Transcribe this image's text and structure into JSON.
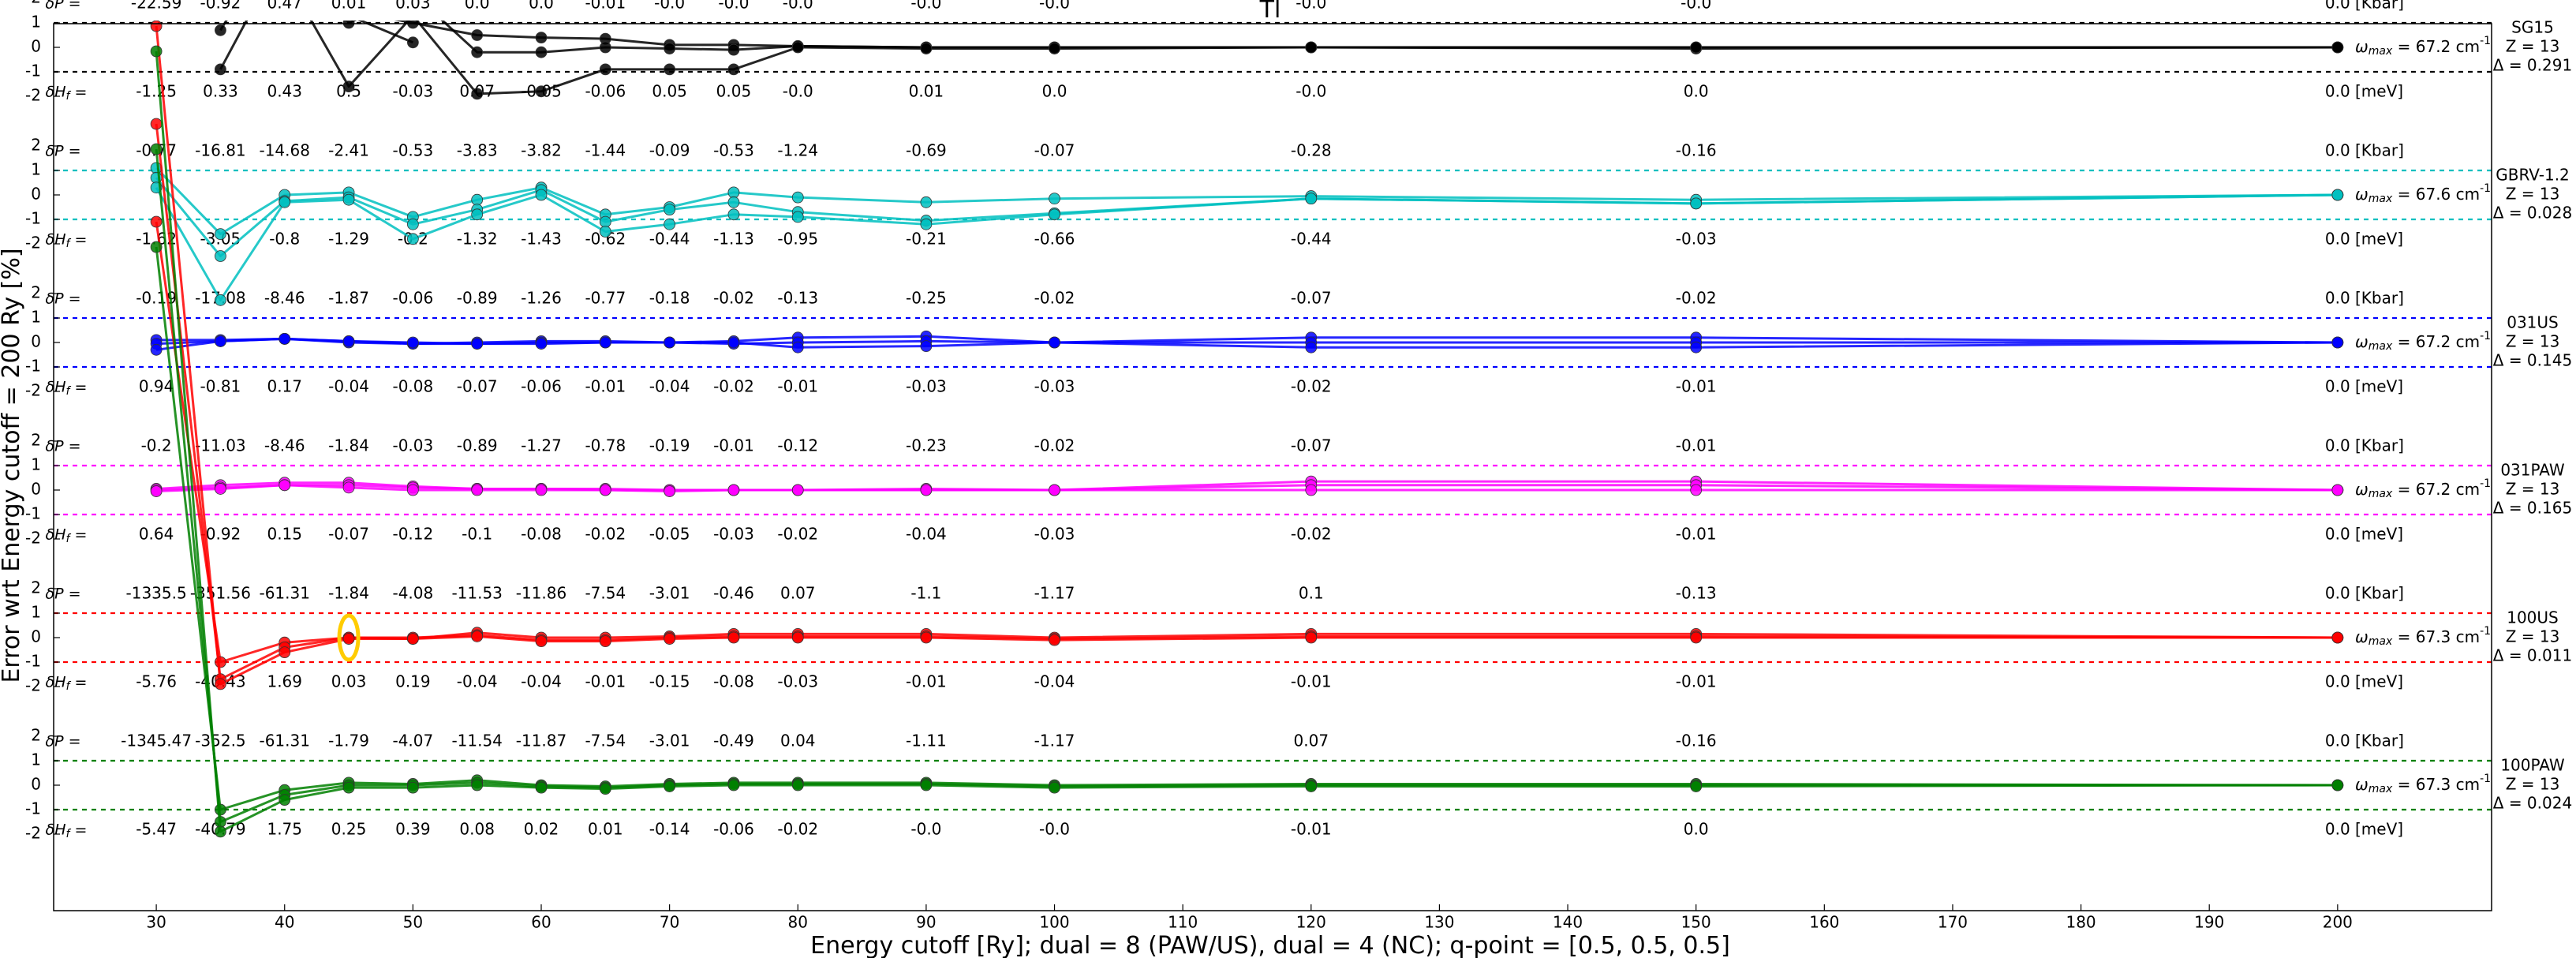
{
  "chart_data": {
    "type": "line",
    "title": "Tl",
    "xlabel": "Energy cutoff [Ry]; dual = 8 (PAW/US), dual = 4 (NC); q-point = [0.5, 0.5, 0.5]",
    "ylabel": "Error wrt Energy cutoff = 200 Ry [%]",
    "x": [
      30,
      35,
      40,
      45,
      50,
      55,
      60,
      65,
      70,
      75,
      80,
      90,
      100,
      120,
      150,
      200
    ],
    "xlim": [
      22,
      212
    ],
    "xticks": [
      30,
      40,
      50,
      60,
      70,
      80,
      90,
      100,
      110,
      120,
      130,
      140,
      150,
      160,
      170,
      180,
      190,
      200
    ],
    "ylim": [
      -2.5,
      2.5
    ],
    "yticks": [
      "-2",
      "-1",
      "0",
      "1",
      "2"
    ],
    "grid": false,
    "labels": {
      "dP": "δP =",
      "dH": "δH",
      "dH_sub": "f",
      "dH_eq": " =",
      "kbar": "[Kbar]",
      "mev": "[meV]",
      "wmax_prefix": "ω",
      "wmax_sub": "max",
      "wmax_mid": " = ",
      "wmax_unit": " cm",
      "wmax_sup": "-1"
    },
    "panels": [
      {
        "name": "SG15",
        "z": "Z = 13",
        "delta": "Δ = 0.291",
        "wmax": "67.2",
        "color": "#000000",
        "dP": [
          "-22.59",
          "-0.92",
          "0.47",
          "0.01",
          "0.03",
          "0.0",
          "0.0",
          "-0.01",
          "-0.0",
          "-0.0",
          "-0.0",
          "-0.0",
          "-0.0",
          "-0.0",
          "-0.0",
          "0.0"
        ],
        "dH": [
          "-1.25",
          "0.33",
          "0.43",
          "0.5",
          "-0.03",
          "0.07",
          "-0.05",
          "-0.06",
          "0.05",
          "0.05",
          "-0.0",
          "0.01",
          "0.0",
          "-0.0",
          "0.0",
          "0.0"
        ],
        "lines": [
          [
            null,
            -0.9,
            4,
            1.5,
            1.0,
            0.5,
            0.4,
            0.35,
            0.1,
            0.1,
            0.05,
            0.0,
            0.0,
            0.0,
            0.0,
            0.0
          ],
          [
            null,
            0.7,
            5,
            1.0,
            2.2,
            -0.2,
            -0.2,
            0.0,
            -0.05,
            -0.1,
            0.05,
            0.0,
            0.0,
            0.0,
            -0.05,
            0.0
          ],
          [
            null,
            3,
            3,
            -1.6,
            1.3,
            -1.9,
            -1.8,
            -0.9,
            -0.9,
            -0.9,
            0.0,
            -0.05,
            -0.05,
            0.0,
            0.0,
            0.0
          ],
          [
            null,
            null,
            5,
            1.3,
            0.2,
            null,
            null,
            null,
            null,
            null,
            null,
            null,
            null,
            null,
            null,
            null
          ]
        ]
      },
      {
        "name": "GBRV-1.2",
        "z": "Z = 13",
        "delta": "Δ = 0.028",
        "wmax": "67.6",
        "color": "#00bfbf",
        "dP": [
          "-0.77",
          "-16.81",
          "-14.68",
          "-2.41",
          "-0.53",
          "-3.83",
          "-3.82",
          "-1.44",
          "-0.09",
          "-0.53",
          "-1.24",
          "-0.69",
          "-0.07",
          "-0.28",
          "-0.16",
          "0.0"
        ],
        "dH": [
          "-1.62",
          "-3.05",
          "-0.8",
          "-1.29",
          "-0.2",
          "-1.32",
          "-1.43",
          "-0.62",
          "-0.44",
          "-1.13",
          "-0.95",
          "-0.21",
          "-0.66",
          "-0.44",
          "-0.03",
          "0.0"
        ],
        "lines": [
          [
            1.1,
            -1.6,
            0.0,
            0.1,
            -0.9,
            -0.2,
            0.3,
            -0.8,
            -0.5,
            0.1,
            -0.1,
            -0.3,
            -0.15,
            -0.05,
            -0.2,
            0.0
          ],
          [
            0.7,
            -2.5,
            -0.25,
            -0.1,
            -1.2,
            -0.6,
            0.2,
            -1.1,
            -0.6,
            -0.3,
            -0.7,
            -1.05,
            -0.75,
            -0.15,
            -0.35,
            0.0
          ],
          [
            0.3,
            -4.3,
            -0.3,
            -0.2,
            -1.8,
            -0.8,
            0.0,
            -1.5,
            -1.2,
            -0.8,
            -0.9,
            -1.2,
            -0.8,
            -0.15,
            -0.35,
            0.0
          ]
        ]
      },
      {
        "name": "031US",
        "z": "Z = 13",
        "delta": "Δ = 0.145",
        "wmax": "67.2",
        "color": "#0000ff",
        "dP": [
          "-0.19",
          "-17.08",
          "-8.46",
          "-1.87",
          "-0.06",
          "-0.89",
          "-1.26",
          "-0.77",
          "-0.18",
          "-0.02",
          "-0.13",
          "-0.25",
          "-0.02",
          "-0.07",
          "-0.02",
          "0.0"
        ],
        "dH": [
          "0.94",
          "-0.81",
          "0.17",
          "-0.04",
          "-0.08",
          "-0.07",
          "-0.06",
          "-0.01",
          "-0.04",
          "-0.02",
          "-0.01",
          "-0.03",
          "-0.03",
          "-0.02",
          "-0.01",
          "0.0"
        ],
        "lines": [
          [
            0.1,
            0.1,
            0.15,
            0.05,
            -0.05,
            0.0,
            0.05,
            0.05,
            0.0,
            0.05,
            0.2,
            0.25,
            0.0,
            0.2,
            0.2,
            0.0
          ],
          [
            -0.05,
            0.05,
            0.15,
            0.0,
            -0.05,
            -0.05,
            0.0,
            0.0,
            0.0,
            -0.05,
            0.0,
            0.05,
            0.0,
            0.0,
            0.0,
            0.0
          ],
          [
            -0.3,
            0.05,
            0.15,
            0.05,
            0.0,
            -0.05,
            -0.05,
            0.0,
            0.0,
            0.0,
            -0.2,
            -0.15,
            0.0,
            -0.2,
            -0.2,
            0.0
          ]
        ]
      },
      {
        "name": "031PAW",
        "z": "Z = 13",
        "delta": "Δ = 0.165",
        "wmax": "67.2",
        "color": "#ff00ff",
        "dP": [
          "-0.2",
          "-11.03",
          "-8.46",
          "-1.84",
          "-0.03",
          "-0.89",
          "-1.27",
          "-0.78",
          "-0.19",
          "-0.01",
          "-0.12",
          "-0.23",
          "-0.02",
          "-0.07",
          "-0.01",
          "0.0"
        ],
        "dH": [
          "0.64",
          "-0.92",
          "0.15",
          "-0.07",
          "-0.12",
          "-0.1",
          "-0.08",
          "-0.02",
          "-0.05",
          "-0.03",
          "-0.02",
          "-0.04",
          "-0.03",
          "-0.02",
          "-0.01",
          "0.0"
        ],
        "lines": [
          [
            0.05,
            0.2,
            0.3,
            0.3,
            0.15,
            0.05,
            0.05,
            0.05,
            0.0,
            0.0,
            0.0,
            0.05,
            0.0,
            0.35,
            0.35,
            0.0
          ],
          [
            0.0,
            0.1,
            0.2,
            0.2,
            0.1,
            0.05,
            0.05,
            0.0,
            0.0,
            0.0,
            0.0,
            0.0,
            0.0,
            0.2,
            0.2,
            0.0
          ],
          [
            -0.05,
            0.05,
            0.2,
            0.1,
            0.0,
            0.0,
            0.0,
            0.0,
            -0.05,
            0.0,
            0.0,
            0.0,
            0.0,
            0.0,
            0.0,
            0.0
          ]
        ]
      },
      {
        "name": "100US",
        "z": "Z = 13",
        "delta": "Δ = 0.011",
        "wmax": "67.3",
        "color": "#ff0000",
        "dP": [
          "-1335.5",
          "-351.56",
          "-61.31",
          "-1.84",
          "-4.08",
          "-11.53",
          "-11.86",
          "-7.54",
          "-3.01",
          "-0.46",
          "0.07",
          "-1.1",
          "-1.17",
          "0.1",
          "-0.13",
          "0.0"
        ],
        "dH": [
          "-5.76",
          "-40.43",
          "1.69",
          "0.03",
          "0.19",
          "-0.04",
          "-0.04",
          "-0.01",
          "-0.15",
          "-0.08",
          "-0.03",
          "-0.01",
          "-0.04",
          "-0.01",
          "-0.01",
          "0.0"
        ],
        "lines": [
          [
            17,
            -1.0,
            -0.2,
            0.0,
            -0.05,
            0.2,
            0.0,
            0.0,
            0.05,
            0.15,
            0.15,
            0.15,
            0.0,
            0.15,
            0.15,
            0.0
          ],
          [
            21,
            -1.7,
            -0.4,
            0.0,
            0.0,
            0.1,
            -0.1,
            -0.1,
            0.0,
            0.05,
            0.05,
            0.05,
            -0.05,
            0.05,
            0.05,
            0.0
          ],
          [
            25,
            -1.9,
            -0.6,
            -0.05,
            -0.05,
            0.05,
            -0.15,
            -0.15,
            -0.05,
            0.0,
            0.0,
            0.0,
            -0.1,
            0.0,
            0.0,
            0.0
          ]
        ]
      },
      {
        "name": "100PAW",
        "z": "Z = 13",
        "delta": "Δ = 0.024",
        "wmax": "67.3",
        "color": "#008000",
        "dP": [
          "-1345.47",
          "-352.5",
          "-61.31",
          "-1.79",
          "-4.07",
          "-11.54",
          "-11.87",
          "-7.54",
          "-3.01",
          "-0.49",
          "0.04",
          "-1.11",
          "-1.17",
          "0.07",
          "-0.16",
          "0.0"
        ],
        "dH": [
          "-5.47",
          "-40.79",
          "1.75",
          "0.25",
          "0.39",
          "0.08",
          "0.02",
          "0.01",
          "-0.14",
          "-0.06",
          "-0.02",
          "-0.0",
          "-0.0",
          "-0.01",
          "0.0",
          "0.0"
        ],
        "lines": [
          [
            22,
            -1.0,
            -0.2,
            0.1,
            0.05,
            0.2,
            0.0,
            -0.05,
            0.05,
            0.1,
            0.1,
            0.1,
            0.0,
            0.05,
            0.05,
            0.0
          ],
          [
            26,
            -1.5,
            -0.4,
            0.0,
            0.0,
            0.1,
            -0.05,
            -0.1,
            0.0,
            0.05,
            0.05,
            0.05,
            -0.05,
            0.0,
            0.0,
            0.0
          ],
          [
            30,
            -1.9,
            -0.6,
            -0.1,
            -0.1,
            0.0,
            -0.1,
            -0.15,
            -0.05,
            0.0,
            0.0,
            0.0,
            -0.1,
            -0.05,
            -0.05,
            0.0
          ]
        ]
      }
    ],
    "annotations": {
      "highlight_x": 45,
      "highlight_panel": "100US",
      "highlight_color": "#ffcc00"
    }
  }
}
